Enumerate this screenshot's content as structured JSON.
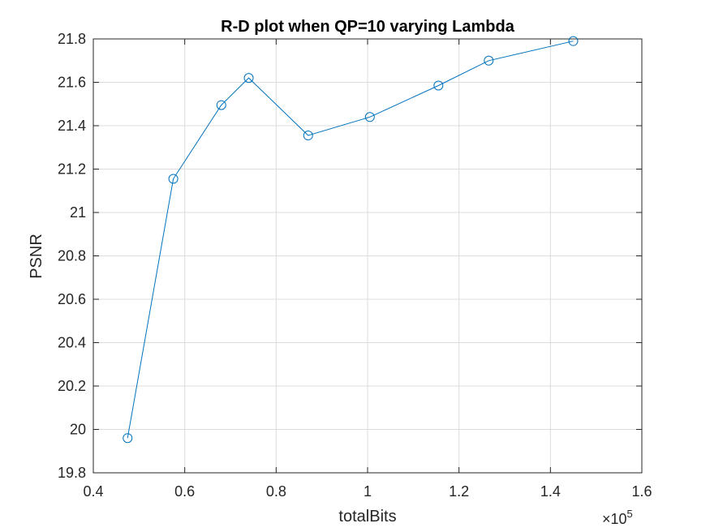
{
  "chart_data": {
    "type": "line",
    "title": "R-D plot when QP=10 varying Lambda",
    "xlabel": "totalBits",
    "ylabel": "PSNR",
    "x_multiplier": {
      "base": "10",
      "exponent": "5"
    },
    "xlim": [
      0.4,
      1.6
    ],
    "ylim": [
      19.8,
      21.8
    ],
    "x_ticks": [
      "0.4",
      "0.6",
      "0.8",
      "1",
      "1.2",
      "1.4",
      "1.6"
    ],
    "y_ticks": [
      "19.8",
      "20",
      "20.2",
      "20.4",
      "20.6",
      "20.8",
      "21",
      "21.2",
      "21.4",
      "21.6",
      "21.8"
    ],
    "grid": true,
    "marker": "circle",
    "line_color": "#0072bd",
    "series": [
      {
        "x": [
          0.475,
          0.575,
          0.68,
          0.74,
          0.87,
          1.005,
          1.155,
          1.265,
          1.45
        ],
        "y": [
          19.96,
          21.155,
          21.495,
          21.62,
          21.355,
          21.44,
          21.585,
          21.7,
          21.79
        ]
      }
    ]
  }
}
